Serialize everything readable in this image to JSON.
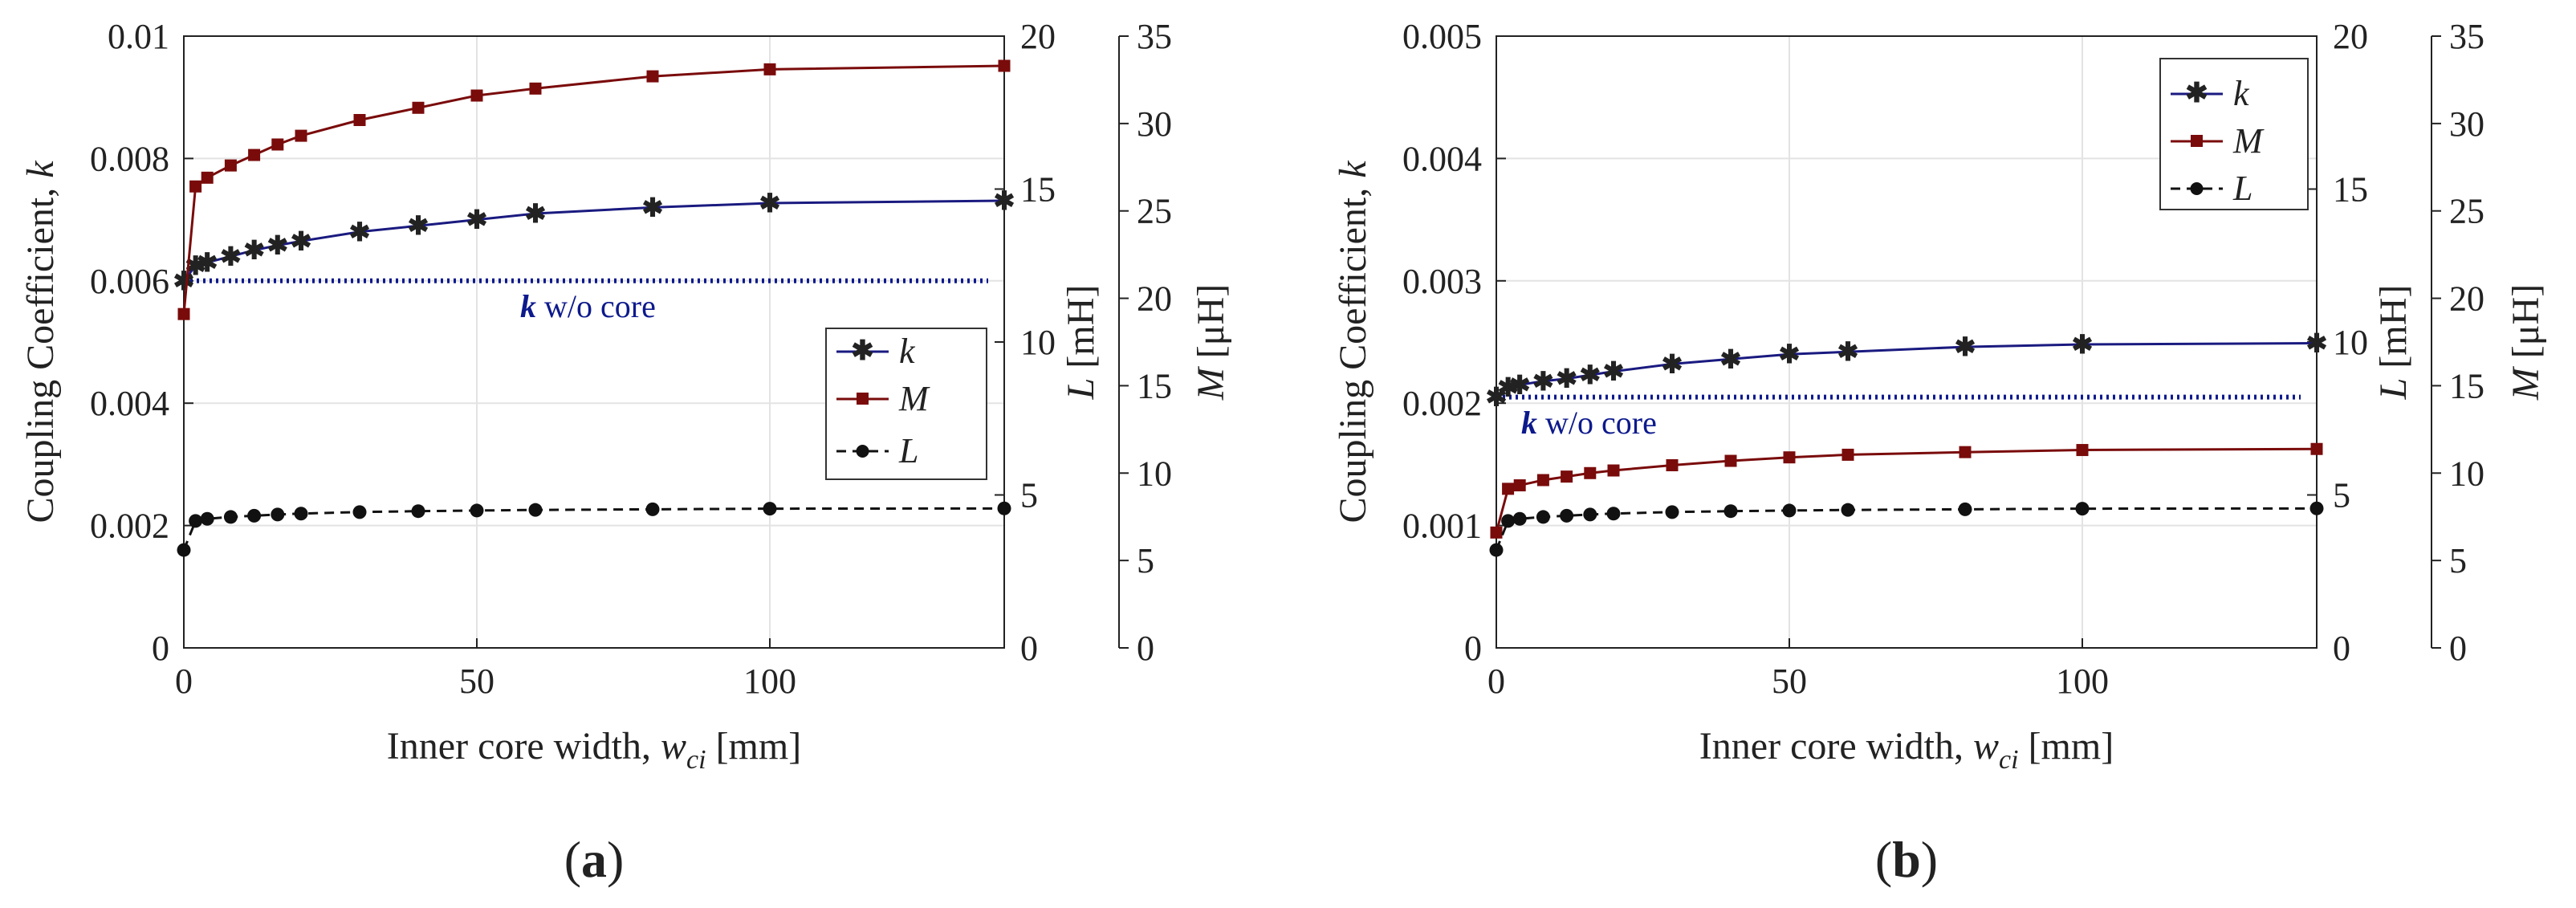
{
  "colors": {
    "k": "#1a1a80",
    "M": "#7a0b0b",
    "L": "#111111",
    "grid": "#e3e3e3",
    "axis": "#222222",
    "kwo": "#0d1a8c"
  },
  "x": [
    0,
    2,
    4,
    8,
    12,
    16,
    20,
    30,
    40,
    50,
    60,
    80,
    100,
    140
  ],
  "xlabel_main": "Inner core width, ",
  "xlabel_var": "w",
  "xlabel_sub": "ci",
  "xlabel_unit": " [mm]",
  "ylabel_left": "Coupling Coefficient, ",
  "ylabel_left_var": "k",
  "ylabel_L_var": "L",
  "ylabel_L_unit": " [mH]",
  "ylabel_M_var": "M",
  "ylabel_M_unit": " [μH]",
  "kwo_bold": "k",
  "kwo_text": " w/o core",
  "legend": [
    "k",
    "M",
    "L"
  ],
  "chart_data": [
    {
      "type": "line",
      "panel_label": "a",
      "xlim": [
        0,
        140
      ],
      "xticks": [
        "0",
        "50",
        "100"
      ],
      "ylim_left": [
        0,
        0.01
      ],
      "yticks_left": [
        "0",
        "0.002",
        "0.004",
        "0.006",
        "0.008",
        "0.01"
      ],
      "ylim_L": [
        0,
        20
      ],
      "yticks_L": [
        "0",
        "5",
        "10",
        "15",
        "20"
      ],
      "ylim_M": [
        0,
        35
      ],
      "yticks_M": [
        "0",
        "5",
        "10",
        "15",
        "20",
        "25",
        "30",
        "35"
      ],
      "k_without_core": 0.006,
      "legend_position": "right-middle",
      "series": [
        {
          "name": "k",
          "axis": "left",
          "values": [
            0.006,
            0.00625,
            0.0063,
            0.0064,
            0.0065,
            0.00658,
            0.00665,
            0.0068,
            0.0069,
            0.007,
            0.0071,
            0.0072,
            0.00727,
            0.00731
          ]
        },
        {
          "name": "M",
          "axis": "M",
          "values": [
            19.1,
            26.4,
            26.9,
            27.6,
            28.2,
            28.8,
            29.3,
            30.2,
            30.9,
            31.6,
            32.0,
            32.7,
            33.1,
            33.3
          ]
        },
        {
          "name": "L",
          "axis": "L",
          "values": [
            3.2,
            4.15,
            4.22,
            4.28,
            4.32,
            4.36,
            4.39,
            4.44,
            4.47,
            4.49,
            4.51,
            4.53,
            4.55,
            4.56
          ]
        }
      ]
    },
    {
      "type": "line",
      "panel_label": "b",
      "xlim": [
        0,
        140
      ],
      "xticks": [
        "0",
        "50",
        "100"
      ],
      "ylim_left": [
        0,
        0.005
      ],
      "yticks_left": [
        "0",
        "0.001",
        "0.002",
        "0.003",
        "0.004",
        "0.005"
      ],
      "ylim_L": [
        0,
        20
      ],
      "yticks_L": [
        "0",
        "5",
        "10",
        "15",
        "20"
      ],
      "ylim_M": [
        0,
        35
      ],
      "yticks_M": [
        "0",
        "5",
        "10",
        "15",
        "20",
        "25",
        "30",
        "35"
      ],
      "k_without_core": 0.00205,
      "legend_position": "top-right",
      "series": [
        {
          "name": "k",
          "axis": "left",
          "values": [
            0.00205,
            0.00213,
            0.00215,
            0.00218,
            0.0022,
            0.00223,
            0.00226,
            0.00232,
            0.00236,
            0.0024,
            0.00242,
            0.00246,
            0.00248,
            0.00249
          ]
        },
        {
          "name": "M",
          "axis": "M",
          "values": [
            6.6,
            9.1,
            9.3,
            9.6,
            9.8,
            10.0,
            10.15,
            10.45,
            10.7,
            10.9,
            11.05,
            11.2,
            11.32,
            11.38
          ]
        },
        {
          "name": "L",
          "axis": "L",
          "values": [
            3.2,
            4.15,
            4.22,
            4.28,
            4.32,
            4.36,
            4.39,
            4.44,
            4.47,
            4.49,
            4.51,
            4.53,
            4.55,
            4.56
          ]
        }
      ]
    }
  ]
}
